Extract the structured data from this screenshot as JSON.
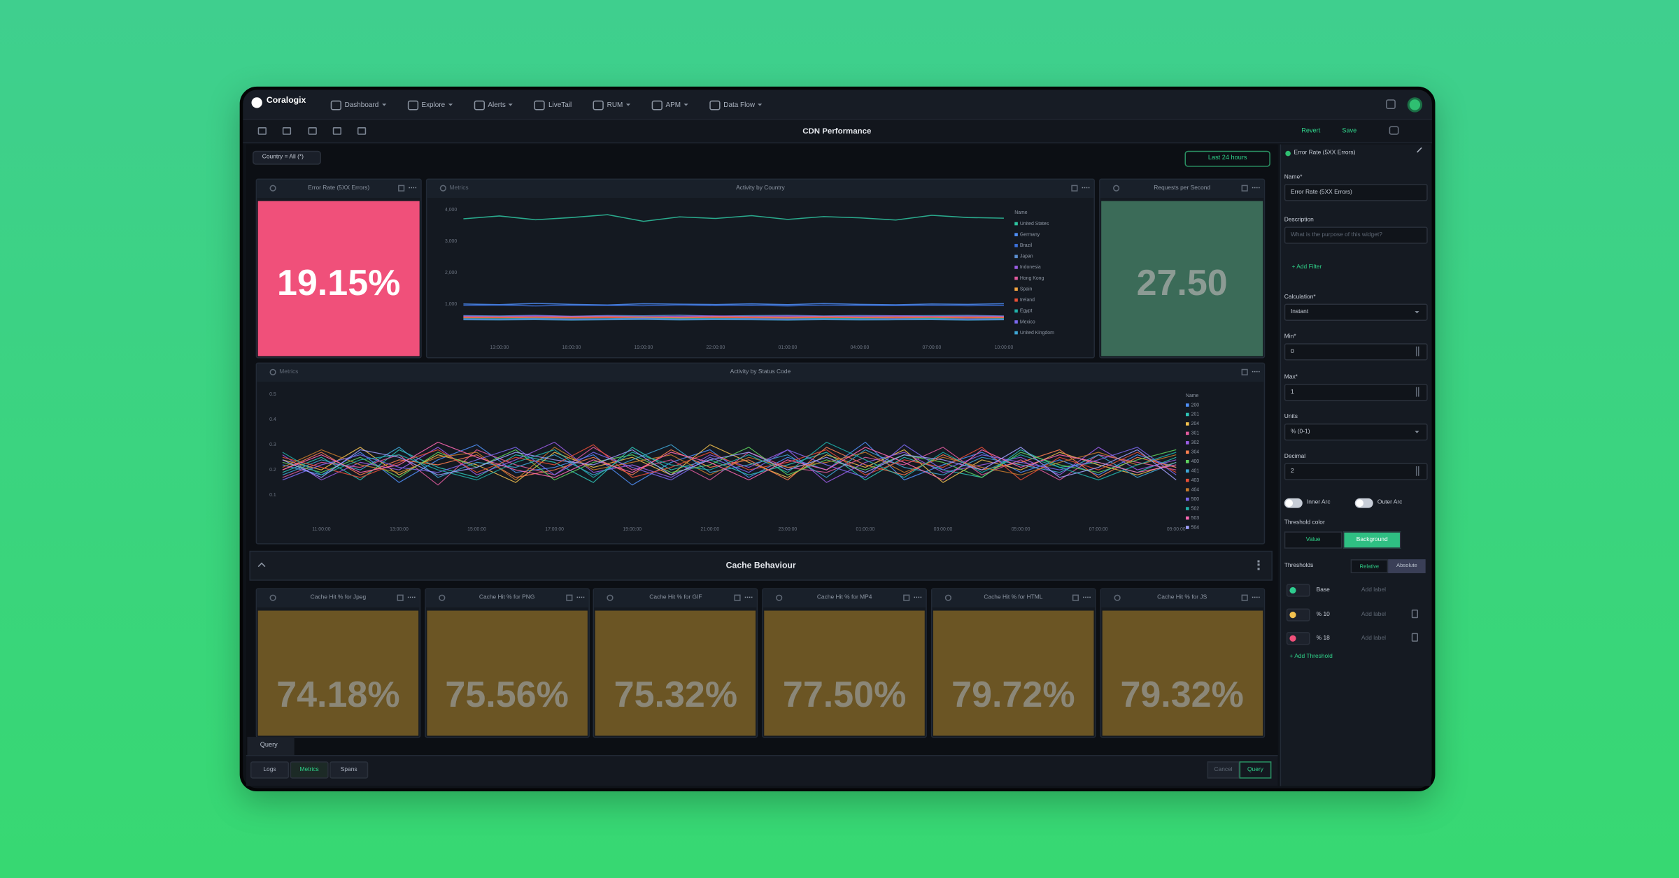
{
  "nav": {
    "brand": "Coralogix",
    "items": [
      "Dashboard",
      "Explore",
      "Alerts",
      "LiveTail",
      "RUM",
      "APM",
      "Data Flow"
    ]
  },
  "toolbar": {
    "title": "CDN Performance",
    "revert": "Revert",
    "save": "Save"
  },
  "filter": "Country = All (*)",
  "time_range": "Last 24 hours",
  "widgets": [
    {
      "title": "Error Rate (5XX Errors)",
      "value": "19.15%",
      "color": "#f0507a"
    },
    {
      "title": "Requests per Second",
      "value": "27.50",
      "color": "#3b6b58"
    }
  ],
  "chart_data": [
    {
      "type": "line",
      "source": "Metrics",
      "title": "Activity by Country",
      "legend_title": "Name",
      "categories": [
        null,
        "13:00:00",
        null,
        "16:00:00",
        null,
        "19:00:00",
        null,
        "22:00:00",
        null,
        "01:00:00",
        null,
        "04:00:00",
        null,
        "07:00:00",
        null,
        "10:00:00"
      ],
      "ylim": [
        0,
        4250
      ],
      "yticks": [
        {
          "value": 4000,
          "label": "4,000"
        },
        {
          "value": 3000,
          "label": "3,000"
        },
        {
          "value": 2000,
          "label": "2,000"
        },
        {
          "value": 1000,
          "label": "1,000"
        }
      ],
      "series": [
        {
          "name": "United States",
          "color": "#2ec4a0",
          "values": [
            3720,
            3810,
            3690,
            3760,
            3850,
            3640,
            3780,
            3730,
            3820,
            3700,
            3790,
            3750,
            3680,
            3830,
            3760,
            3740
          ]
        },
        {
          "name": "Germany",
          "color": "#4f8ff7",
          "values": [
            1010,
            990,
            1030,
            1000,
            980,
            1020,
            1005,
            995,
            1015,
            990,
            1025,
            1000,
            985,
            1010,
            1000,
            1020
          ]
        },
        {
          "name": "Brazil",
          "color": "#3b6fd9",
          "values": [
            960,
            975,
            950,
            970,
            965,
            955,
            980,
            960,
            970,
            950,
            975,
            965,
            960,
            970,
            955,
            965
          ]
        },
        {
          "name": "Japan",
          "color": "#5b8fd0",
          "values": [
            640,
            630,
            650,
            620,
            645,
            635,
            655,
            625,
            640,
            650,
            630,
            645,
            635,
            640,
            650,
            630
          ]
        },
        {
          "name": "Indonesia",
          "color": "#9b5de5",
          "values": [
            620,
            610,
            630,
            615,
            625,
            605,
            620,
            630,
            610,
            625,
            615,
            620,
            630,
            610,
            620,
            615
          ]
        },
        {
          "name": "Hong Kong",
          "color": "#e05a9d",
          "values": [
            600,
            590,
            610,
            595,
            605,
            600,
            590,
            610,
            600,
            595,
            605,
            590,
            600,
            610,
            595,
            600
          ]
        },
        {
          "name": "Spain",
          "color": "#f2a541",
          "values": [
            580,
            590,
            575,
            585,
            595,
            580,
            570,
            590,
            585,
            575,
            590,
            580,
            585,
            575,
            590,
            580
          ]
        },
        {
          "name": "Ireland",
          "color": "#e94f37",
          "values": [
            560,
            570,
            555,
            565,
            575,
            560,
            550,
            570,
            565,
            555,
            570,
            560,
            565,
            555,
            570,
            560
          ]
        },
        {
          "name": "Egypt",
          "color": "#20b2aa",
          "values": [
            545,
            540,
            550,
            535,
            545,
            555,
            540,
            550,
            545,
            535,
            550,
            545,
            540,
            550,
            535,
            545
          ]
        },
        {
          "name": "Mexico",
          "color": "#7b68ee",
          "values": [
            530,
            520,
            535,
            525,
            530,
            540,
            520,
            530,
            535,
            525,
            530,
            520,
            535,
            525,
            530,
            525
          ]
        },
        {
          "name": "United Kingdom",
          "color": "#3fa7d6",
          "values": [
            510,
            505,
            515,
            500,
            510,
            520,
            505,
            515,
            510,
            500,
            515,
            505,
            510,
            515,
            500,
            510
          ]
        }
      ]
    },
    {
      "type": "line",
      "source": "Metrics",
      "title": "Activity by Status Code",
      "legend_title": "Name",
      "categories": [
        null,
        "11:00:00",
        null,
        "13:00:00",
        null,
        "15:00:00",
        null,
        "17:00:00",
        null,
        "19:00:00",
        null,
        "21:00:00",
        null,
        "23:00:00",
        null,
        "01:00:00",
        null,
        "03:00:00",
        null,
        "05:00:00",
        null,
        "07:00:00",
        null,
        "09:00:00"
      ],
      "ylim": [
        0,
        0.55
      ],
      "yticks": [
        0.5,
        0.4,
        0.3,
        0.2,
        0.1
      ],
      "series": [
        {
          "name": "200",
          "color": "#4f8ff7",
          "values": [
            0.22,
            0.18,
            0.27,
            0.15,
            0.24,
            0.3,
            0.19,
            0.21,
            0.26,
            0.14,
            0.23,
            0.28,
            0.17,
            0.25,
            0.2,
            0.31,
            0.16,
            0.22,
            0.27,
            0.19,
            0.24,
            0.18,
            0.26,
            0.21
          ]
        },
        {
          "name": "201",
          "color": "#2ec4b6",
          "values": [
            0.19,
            0.25,
            0.16,
            0.28,
            0.21,
            0.17,
            0.26,
            0.23,
            0.15,
            0.29,
            0.2,
            0.24,
            0.18,
            0.22,
            0.27,
            0.16,
            0.25,
            0.2,
            0.17,
            0.28,
            0.21,
            0.23,
            0.19,
            0.25
          ]
        },
        {
          "name": "204",
          "color": "#f2c14e",
          "values": [
            0.24,
            0.2,
            0.29,
            0.18,
            0.26,
            0.22,
            0.15,
            0.27,
            0.21,
            0.25,
            0.18,
            0.3,
            0.23,
            0.17,
            0.26,
            0.21,
            0.28,
            0.15,
            0.24,
            0.2,
            0.27,
            0.22,
            0.18,
            0.23
          ]
        },
        {
          "name": "301",
          "color": "#e05a9d",
          "values": [
            0.17,
            0.23,
            0.21,
            0.26,
            0.14,
            0.28,
            0.22,
            0.18,
            0.29,
            0.2,
            0.24,
            0.16,
            0.27,
            0.21,
            0.19,
            0.25,
            0.22,
            0.29,
            0.18,
            0.24,
            0.16,
            0.26,
            0.23,
            0.2
          ]
        },
        {
          "name": "302",
          "color": "#9b5de5",
          "values": [
            0.26,
            0.16,
            0.23,
            0.2,
            0.29,
            0.18,
            0.24,
            0.31,
            0.19,
            0.22,
            0.17,
            0.26,
            0.21,
            0.28,
            0.15,
            0.23,
            0.27,
            0.19,
            0.22,
            0.25,
            0.18,
            0.29,
            0.2,
            0.24
          ]
        },
        {
          "name": "304",
          "color": "#ff7f50",
          "values": [
            0.2,
            0.27,
            0.18,
            0.24,
            0.22,
            0.26,
            0.17,
            0.2,
            0.25,
            0.18,
            0.28,
            0.21,
            0.24,
            0.16,
            0.29,
            0.22,
            0.18,
            0.26,
            0.2,
            0.23,
            0.28,
            0.17,
            0.25,
            0.21
          ]
        },
        {
          "name": "400",
          "color": "#5fd35f",
          "values": [
            0.23,
            0.19,
            0.25,
            0.17,
            0.27,
            0.21,
            0.28,
            0.16,
            0.23,
            0.26,
            0.19,
            0.22,
            0.29,
            0.18,
            0.24,
            0.2,
            0.26,
            0.23,
            0.17,
            0.27,
            0.22,
            0.19,
            0.24,
            0.28
          ]
        },
        {
          "name": "401",
          "color": "#3fa7d6",
          "values": [
            0.18,
            0.24,
            0.2,
            0.29,
            0.17,
            0.23,
            0.21,
            0.26,
            0.18,
            0.24,
            0.3,
            0.19,
            0.22,
            0.26,
            0.17,
            0.28,
            0.21,
            0.18,
            0.25,
            0.22,
            0.19,
            0.26,
            0.17,
            0.23
          ]
        },
        {
          "name": "403",
          "color": "#e94f37",
          "values": [
            0.25,
            0.21,
            0.17,
            0.23,
            0.28,
            0.19,
            0.25,
            0.22,
            0.3,
            0.17,
            0.21,
            0.27,
            0.2,
            0.23,
            0.28,
            0.18,
            0.24,
            0.21,
            0.29,
            0.16,
            0.25,
            0.2,
            0.27,
            0.19
          ]
        },
        {
          "name": "404",
          "color": "#c97b2b",
          "values": [
            0.21,
            0.28,
            0.22,
            0.19,
            0.25,
            0.27,
            0.16,
            0.29,
            0.2,
            0.23,
            0.26,
            0.18,
            0.25,
            0.21,
            0.23,
            0.27,
            0.19,
            0.25,
            0.21,
            0.18,
            0.23,
            0.27,
            0.22,
            0.26
          ]
        },
        {
          "name": "500",
          "color": "#7b68ee",
          "values": [
            0.16,
            0.22,
            0.26,
            0.21,
            0.19,
            0.24,
            0.29,
            0.18,
            0.27,
            0.21,
            0.16,
            0.25,
            0.19,
            0.28,
            0.22,
            0.17,
            0.3,
            0.2,
            0.26,
            0.23,
            0.2,
            0.24,
            0.29,
            0.18
          ]
        },
        {
          "name": "502",
          "color": "#20b2aa",
          "values": [
            0.27,
            0.18,
            0.24,
            0.26,
            0.2,
            0.16,
            0.23,
            0.28,
            0.17,
            0.27,
            0.22,
            0.2,
            0.26,
            0.19,
            0.31,
            0.24,
            0.17,
            0.27,
            0.19,
            0.26,
            0.21,
            0.16,
            0.22,
            0.27
          ]
        },
        {
          "name": "503",
          "color": "#ff69b4",
          "values": [
            0.2,
            0.26,
            0.19,
            0.22,
            0.31,
            0.25,
            0.2,
            0.17,
            0.24,
            0.19,
            0.27,
            0.23,
            0.16,
            0.24,
            0.2,
            0.29,
            0.23,
            0.16,
            0.28,
            0.21,
            0.26,
            0.23,
            0.19,
            0.22
          ]
        },
        {
          "name": "504",
          "color": "#a0a0ff",
          "values": [
            0.24,
            0.17,
            0.28,
            0.25,
            0.18,
            0.21,
            0.27,
            0.24,
            0.22,
            0.28,
            0.18,
            0.24,
            0.27,
            0.2,
            0.25,
            0.19,
            0.26,
            0.24,
            0.2,
            0.29,
            0.17,
            0.21,
            0.28,
            0.16
          ]
        }
      ]
    }
  ],
  "section": {
    "title": "Cache Behaviour",
    "color": "#6b5524",
    "tiles": [
      {
        "title": "Cache Hit % for Jpeg",
        "value": "74.18%"
      },
      {
        "title": "Cache Hit % for PNG",
        "value": "75.56%"
      },
      {
        "title": "Cache Hit % for GIF",
        "value": "75.32%"
      },
      {
        "title": "Cache Hit % for MP4",
        "value": "77.50%"
      },
      {
        "title": "Cache Hit % for HTML",
        "value": "79.72%"
      },
      {
        "title": "Cache Hit % for JS",
        "value": "79.32%"
      }
    ]
  },
  "query_bar": {
    "tab": "Query",
    "sources": [
      "Logs",
      "Metrics",
      "Spans"
    ],
    "cancel": "Cancel",
    "run": "Query"
  },
  "editor": {
    "title": "Error Rate (5XX Errors)",
    "fields": [
      {
        "label": "Name*",
        "value": "Error Rate (5XX Errors)"
      },
      {
        "label": "Description",
        "placeholder": "What is the purpose of this widget?"
      },
      {
        "label": "Calculation*",
        "value": "Instant"
      },
      {
        "label": "Min*",
        "value": "0"
      },
      {
        "label": "Max*",
        "value": "1"
      },
      {
        "label": "Units",
        "value": "% (0-1)"
      },
      {
        "label": "Decimal",
        "value": "2"
      }
    ],
    "add_filter": "+ Add Filter",
    "toggles": [
      "Inner Arc",
      "Outer Arc"
    ],
    "threshold_color": {
      "label": "Threshold color",
      "options": [
        "Value",
        "Background"
      ]
    },
    "thresholds": {
      "label": "Thresholds",
      "modes": [
        "Relative",
        "Absolute"
      ],
      "rows": [
        {
          "value": "Base",
          "color": "#2ecc8f",
          "label_placeholder": "Add label"
        },
        {
          "value": "% 10",
          "color": "#f2c14e",
          "label_placeholder": "Add label"
        },
        {
          "value": "% 18",
          "color": "#f0507a",
          "label_placeholder": "Add label"
        }
      ],
      "add": "+ Add Threshold"
    }
  }
}
